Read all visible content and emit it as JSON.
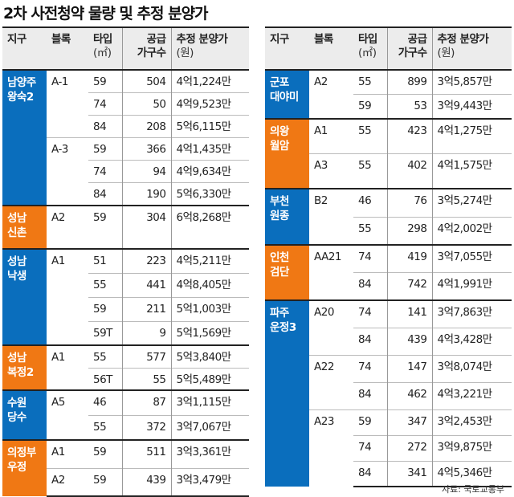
{
  "title": "2차 사전청약 물량 및 추정 분양가",
  "headers": {
    "district": "지구",
    "block": "블록",
    "type": "타입",
    "type_unit": "(㎡)",
    "supply_1": "공급",
    "supply_2": "가구수",
    "price": "추정 분양가",
    "price_unit": "(원)"
  },
  "colors": {
    "blue": "#0a6ebd",
    "orange": "#f07814"
  },
  "left": [
    {
      "name": "남양주\n왕숙2",
      "color": "blue",
      "blocks": [
        {
          "block": "A-1",
          "rows": [
            [
              "59",
              "504",
              "4억1,224만"
            ],
            [
              "74",
              "50",
              "4억9,523만"
            ],
            [
              "84",
              "208",
              "5억6,115만"
            ]
          ]
        },
        {
          "block": "A-3",
          "rows": [
            [
              "59",
              "366",
              "4억1,435만"
            ],
            [
              "74",
              "94",
              "4억9,634만"
            ],
            [
              "84",
              "190",
              "5억6,330만"
            ]
          ]
        }
      ]
    },
    {
      "name": "성남\n신촌",
      "color": "orange",
      "blocks": [
        {
          "block": "A2",
          "rows": [
            [
              "59",
              "304",
              "6억8,268만"
            ]
          ]
        }
      ]
    },
    {
      "name": "성남\n낙생",
      "color": "blue",
      "blocks": [
        {
          "block": "A1",
          "rows": [
            [
              "51",
              "223",
              "4억5,211만"
            ],
            [
              "55",
              "441",
              "4억8,405만"
            ],
            [
              "59",
              "211",
              "5억1,003만"
            ],
            [
              "59T",
              "9",
              "5억1,569만"
            ]
          ]
        }
      ]
    },
    {
      "name": "성남\n복정2",
      "color": "orange",
      "blocks": [
        {
          "block": "A1",
          "rows": [
            [
              "55",
              "577",
              "5억3,840만"
            ],
            [
              "56T",
              "55",
              "5억5,489만"
            ]
          ]
        }
      ]
    },
    {
      "name": "수원\n당수",
      "color": "blue",
      "blocks": [
        {
          "block": "A5",
          "rows": [
            [
              "46",
              "87",
              "3억1,115만"
            ],
            [
              "55",
              "372",
              "3억7,067만"
            ]
          ]
        }
      ]
    },
    {
      "name": "의정부\n우정",
      "color": "orange",
      "blocks": [
        {
          "block": "A1",
          "rows": [
            [
              "59",
              "511",
              "3억3,361만"
            ]
          ]
        },
        {
          "block": "A2",
          "rows": [
            [
              "59",
              "439",
              "3억3,479만"
            ]
          ]
        }
      ]
    }
  ],
  "right": [
    {
      "name": "군포\n대야미",
      "color": "blue",
      "blocks": [
        {
          "block": "A2",
          "rows": [
            [
              "55",
              "899",
              "3억5,857만"
            ],
            [
              "59",
              "53",
              "3억9,443만"
            ]
          ]
        }
      ]
    },
    {
      "name": "의왕\n월암",
      "color": "orange",
      "blocks": [
        {
          "block": "A1",
          "rows": [
            [
              "55",
              "423",
              "4억1,275만"
            ]
          ]
        },
        {
          "block": "A3",
          "rows": [
            [
              "55",
              "402",
              "4억1,575만"
            ]
          ]
        }
      ]
    },
    {
      "name": "부천\n원종",
      "color": "blue",
      "blocks": [
        {
          "block": "B2",
          "rows": [
            [
              "46",
              "76",
              "3억5,274만"
            ],
            [
              "55",
              "298",
              "4억2,002만"
            ]
          ]
        }
      ]
    },
    {
      "name": "인천\n검단",
      "color": "orange",
      "blocks": [
        {
          "block": "AA21",
          "rows": [
            [
              "74",
              "419",
              "3억7,055만"
            ],
            [
              "84",
              "742",
              "4억1,991만"
            ]
          ]
        }
      ]
    },
    {
      "name": "파주\n운정3",
      "color": "blue",
      "blocks": [
        {
          "block": "A20",
          "rows": [
            [
              "74",
              "141",
              "3억7,863만"
            ],
            [
              "84",
              "439",
              "4억3,428만"
            ]
          ]
        },
        {
          "block": "A22",
          "rows": [
            [
              "74",
              "147",
              "3억8,074만"
            ],
            [
              "84",
              "462",
              "4억3,221만"
            ]
          ]
        },
        {
          "block": "A23",
          "rows": [
            [
              "59",
              "347",
              "3억2,453만"
            ],
            [
              "74",
              "272",
              "3억9,875만"
            ],
            [
              "84",
              "341",
              "4억5,346만"
            ]
          ]
        }
      ]
    }
  ],
  "source": "자료: 국토교통부"
}
